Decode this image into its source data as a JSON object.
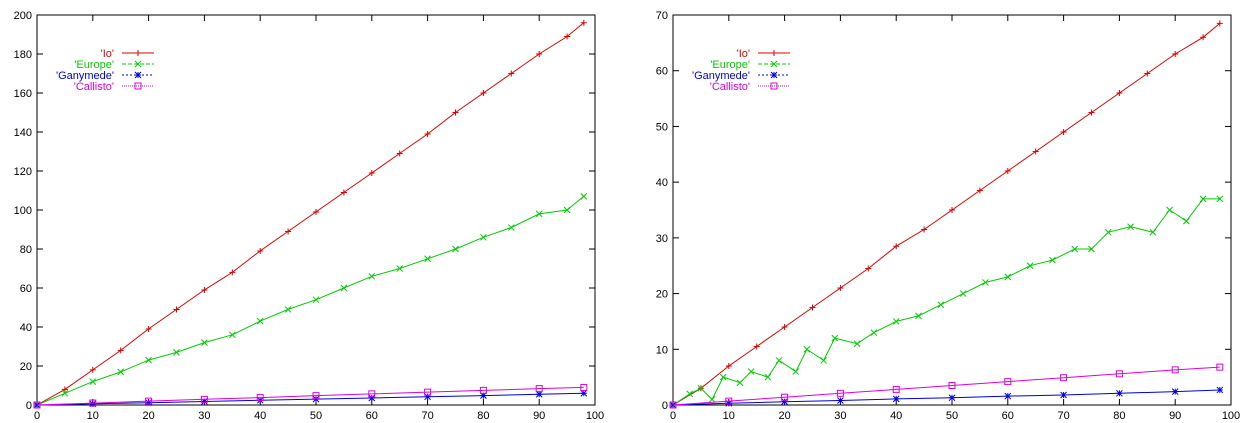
{
  "chart_data": [
    {
      "type": "line",
      "title": "",
      "xlabel": "",
      "ylabel": "",
      "xlim": [
        0,
        100
      ],
      "ylim": [
        0,
        200
      ],
      "xticks": [
        0,
        10,
        20,
        30,
        40,
        50,
        60,
        70,
        80,
        90,
        100
      ],
      "yticks": [
        0,
        20,
        40,
        60,
        80,
        100,
        120,
        140,
        160,
        180,
        200
      ],
      "grid": false,
      "legend": "top-left",
      "series": [
        {
          "name": "'Io'",
          "color": "#dd0000",
          "marker": "plus",
          "x": [
            0,
            5,
            10,
            15,
            20,
            25,
            30,
            35,
            40,
            45,
            50,
            55,
            60,
            65,
            70,
            75,
            80,
            85,
            90,
            95,
            98
          ],
          "y": [
            0,
            8,
            18,
            28,
            39,
            49,
            59,
            68,
            79,
            89,
            99,
            109,
            119,
            129,
            139,
            150,
            160,
            170,
            180,
            189,
            196
          ]
        },
        {
          "name": "'Europe'",
          "color": "#00cc00",
          "marker": "cross",
          "x": [
            0,
            5,
            10,
            15,
            20,
            25,
            30,
            35,
            40,
            45,
            50,
            55,
            60,
            65,
            70,
            75,
            80,
            85,
            90,
            95,
            98
          ],
          "y": [
            0,
            6,
            12,
            17,
            23,
            27,
            32,
            36,
            43,
            49,
            54,
            60,
            66,
            70,
            75,
            80,
            86,
            91,
            98,
            100,
            107
          ]
        },
        {
          "name": "'Ganymede'",
          "color": "#0000dd",
          "marker": "star",
          "x": [
            0,
            10,
            20,
            30,
            40,
            50,
            60,
            70,
            80,
            90,
            98
          ],
          "y": [
            0,
            0.6,
            1.2,
            1.8,
            2.4,
            3,
            3.6,
            4.2,
            4.8,
            5.5,
            6
          ]
        },
        {
          "name": "'Callisto'",
          "color": "#dd00dd",
          "marker": "box",
          "x": [
            0,
            10,
            20,
            30,
            40,
            50,
            60,
            70,
            80,
            90,
            98
          ],
          "y": [
            0,
            1,
            2,
            2.9,
            3.8,
            4.8,
            5.7,
            6.6,
            7.5,
            8.4,
            9
          ]
        }
      ]
    },
    {
      "type": "line",
      "title": "",
      "xlabel": "",
      "ylabel": "",
      "xlim": [
        0,
        100
      ],
      "ylim": [
        0,
        70
      ],
      "xticks": [
        0,
        10,
        20,
        30,
        40,
        50,
        60,
        70,
        80,
        90,
        100
      ],
      "yticks": [
        0,
        10,
        20,
        30,
        40,
        50,
        60,
        70
      ],
      "grid": false,
      "legend": "top-left",
      "series": [
        {
          "name": "'Io'",
          "color": "#dd0000",
          "marker": "plus",
          "x": [
            0,
            5,
            10,
            15,
            20,
            25,
            30,
            35,
            40,
            45,
            50,
            55,
            60,
            65,
            70,
            75,
            80,
            85,
            90,
            95,
            98
          ],
          "y": [
            0,
            3,
            7,
            10.5,
            14,
            17.5,
            21,
            24.5,
            28.5,
            31.5,
            35,
            38.5,
            42,
            45.5,
            49,
            52.5,
            56,
            59.5,
            63,
            66,
            68.5
          ]
        },
        {
          "name": "'Europe'",
          "color": "#00cc00",
          "marker": "cross",
          "x": [
            0,
            3,
            5,
            7,
            9,
            12,
            14,
            17,
            19,
            22,
            24,
            27,
            29,
            33,
            36,
            40,
            44,
            48,
            52,
            56,
            60,
            64,
            68,
            72,
            75,
            78,
            82,
            86,
            89,
            92,
            95,
            98
          ],
          "y": [
            0,
            2,
            3,
            1,
            5,
            4,
            6,
            5,
            8,
            6,
            10,
            8,
            12,
            11,
            13,
            15,
            16,
            18,
            20,
            22,
            23,
            25,
            26,
            28,
            28,
            31,
            32,
            31,
            35,
            33,
            37,
            37
          ]
        },
        {
          "name": "'Ganymede'",
          "color": "#0000dd",
          "marker": "star",
          "x": [
            0,
            10,
            20,
            30,
            40,
            50,
            60,
            70,
            80,
            90,
            98
          ],
          "y": [
            0,
            0.3,
            0.6,
            0.8,
            1.1,
            1.3,
            1.6,
            1.8,
            2.1,
            2.4,
            2.7
          ]
        },
        {
          "name": "'Callisto'",
          "color": "#dd00dd",
          "marker": "box",
          "x": [
            0,
            10,
            20,
            30,
            40,
            50,
            60,
            70,
            80,
            90,
            98
          ],
          "y": [
            0,
            0.7,
            1.4,
            2.1,
            2.8,
            3.5,
            4.2,
            4.9,
            5.6,
            6.3,
            6.8
          ]
        }
      ]
    }
  ]
}
